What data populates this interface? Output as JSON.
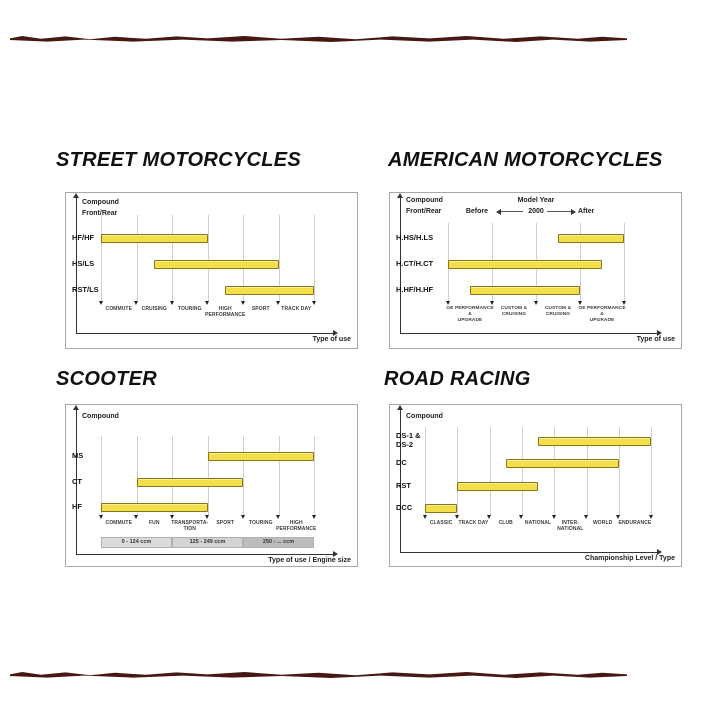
{
  "colors": {
    "bar_fill": "#F3DF4A",
    "bar_border": "#8A7418",
    "band_fills": [
      "#dcdcdc",
      "#d3d3d3",
      "#bdbdbd"
    ],
    "torn_edge": "#471712"
  },
  "chart_data": [
    {
      "type": "bar",
      "variant": "horizontal-range",
      "title": "STREET MOTORCYCLES",
      "y_axis_title": "Compound",
      "y_axis_subtitle": "Front/Rear",
      "x_axis_title": "Type of use",
      "categories": [
        "COMMUTE",
        "CRUISING",
        "TOURING",
        "HIGH\nPERFORMANCE",
        "SPORT",
        "TRACK DAY"
      ],
      "tick_count": 7,
      "bars": [
        {
          "label": "HF/HF",
          "start_tick": 0,
          "end_tick": 3
        },
        {
          "label": "HS/LS",
          "start_tick": 1.5,
          "end_tick": 5
        },
        {
          "label": "RST/LS",
          "start_tick": 3.5,
          "end_tick": 6
        }
      ]
    },
    {
      "type": "bar",
      "variant": "horizontal-range",
      "title": "AMERICAN MOTORCYCLES",
      "y_axis_title": "Compound",
      "y_axis_subtitle": "Front/Rear",
      "x_axis_title": "Type of use",
      "model_year_header": {
        "title": "Model Year",
        "left_label": "Before",
        "center_label": "2000",
        "right_label": "After"
      },
      "categories": [
        "OE PERFORMANCE &\nUPGRADE",
        "CUSTOM &\nCRUISING",
        "CUSTOM &\nCRUISING",
        "OE PERFORMANCE &\nUPGRADE"
      ],
      "tick_count": 5,
      "bars": [
        {
          "label": "H.HS/H.LS",
          "start_tick": 2.5,
          "end_tick": 4
        },
        {
          "label": "H.CT/H.CT",
          "start_tick": 0,
          "end_tick": 3.5
        },
        {
          "label": "H.HF/H.HF",
          "start_tick": 0.5,
          "end_tick": 3
        }
      ]
    },
    {
      "type": "bar",
      "variant": "horizontal-range",
      "title": "SCOOTER",
      "y_axis_title": "Compound",
      "x_axis_title": "Type of use / Engine size",
      "categories": [
        "COMMUTE",
        "FUN",
        "TRANSPORTA-\nTION",
        "SPORT",
        "TOURING",
        "HIGH\nPERFORMANCE"
      ],
      "tick_count": 7,
      "bars": [
        {
          "label": "MS",
          "start_tick": 3,
          "end_tick": 6
        },
        {
          "label": "CT",
          "start_tick": 1,
          "end_tick": 4
        },
        {
          "label": "HF",
          "start_tick": 0,
          "end_tick": 3
        }
      ],
      "engine_size_bands": [
        {
          "label": "0 - 124 ccm",
          "start_tick": 0,
          "end_tick": 2
        },
        {
          "label": "125 - 249 ccm",
          "start_tick": 2,
          "end_tick": 4
        },
        {
          "label": "250 - ... ccm",
          "start_tick": 4,
          "end_tick": 6
        }
      ]
    },
    {
      "type": "bar",
      "variant": "horizontal-range",
      "title": "ROAD RACING",
      "y_axis_title": "Compound",
      "x_axis_title": "Championship Level / Type",
      "categories": [
        "CLASSIC",
        "TRACK DAY",
        "CLUB",
        "NATIONAL",
        "INTER-\nNATIONAL",
        "WORLD",
        "ENDURANCE"
      ],
      "tick_count": 8,
      "bars": [
        {
          "label": "DS-1 &\nDS-2",
          "start_tick": 3.5,
          "end_tick": 7
        },
        {
          "label": "DC",
          "start_tick": 2.5,
          "end_tick": 6
        },
        {
          "label": "RST",
          "start_tick": 1,
          "end_tick": 3.5
        },
        {
          "label": "DCC",
          "start_tick": 0,
          "end_tick": 1
        }
      ]
    }
  ]
}
